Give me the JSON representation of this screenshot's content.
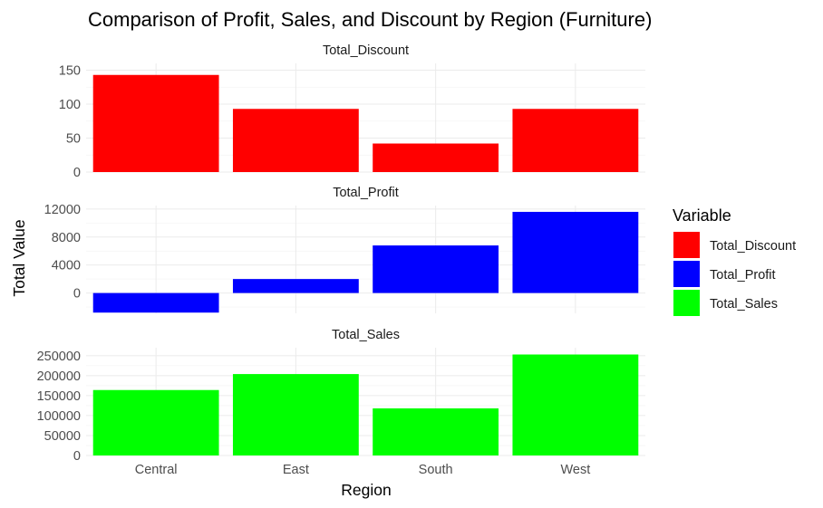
{
  "chart_data": {
    "type": "bar",
    "title": "Comparison of Profit, Sales, and Discount by Region (Furniture)",
    "xlabel": "Region",
    "ylabel": "Total Value",
    "categories": [
      "Central",
      "East",
      "South",
      "West"
    ],
    "grid": true,
    "legend": {
      "title": "Variable",
      "position": "right",
      "entries": [
        {
          "label": "Total_Discount",
          "color": "#ff0000"
        },
        {
          "label": "Total_Profit",
          "color": "#0000ff"
        },
        {
          "label": "Total_Sales",
          "color": "#00ff00"
        }
      ]
    },
    "panels": [
      {
        "name": "Total_Discount",
        "color": "#ff0000",
        "values": [
          143,
          93,
          42,
          93
        ],
        "ylim": [
          0,
          160
        ],
        "yticks": [
          0,
          50,
          100,
          150
        ],
        "ytick_labels": [
          "0",
          "50",
          "100",
          "150"
        ]
      },
      {
        "name": "Total_Profit",
        "color": "#0000ff",
        "values": [
          -2800,
          2000,
          6800,
          11600
        ],
        "ylim": [
          -2900,
          12500
        ],
        "yticks": [
          0,
          4000,
          8000,
          12000
        ],
        "ytick_labels": [
          "0",
          "4000",
          "8000",
          "12000"
        ]
      },
      {
        "name": "Total_Sales",
        "color": "#00ff00",
        "values": [
          164000,
          204000,
          118000,
          253000
        ],
        "ylim": [
          0,
          270000
        ],
        "yticks": [
          0,
          50000,
          100000,
          150000,
          200000,
          250000
        ],
        "ytick_labels": [
          "0",
          "50000",
          "100000",
          "150000",
          "200000",
          "250000"
        ]
      }
    ]
  }
}
